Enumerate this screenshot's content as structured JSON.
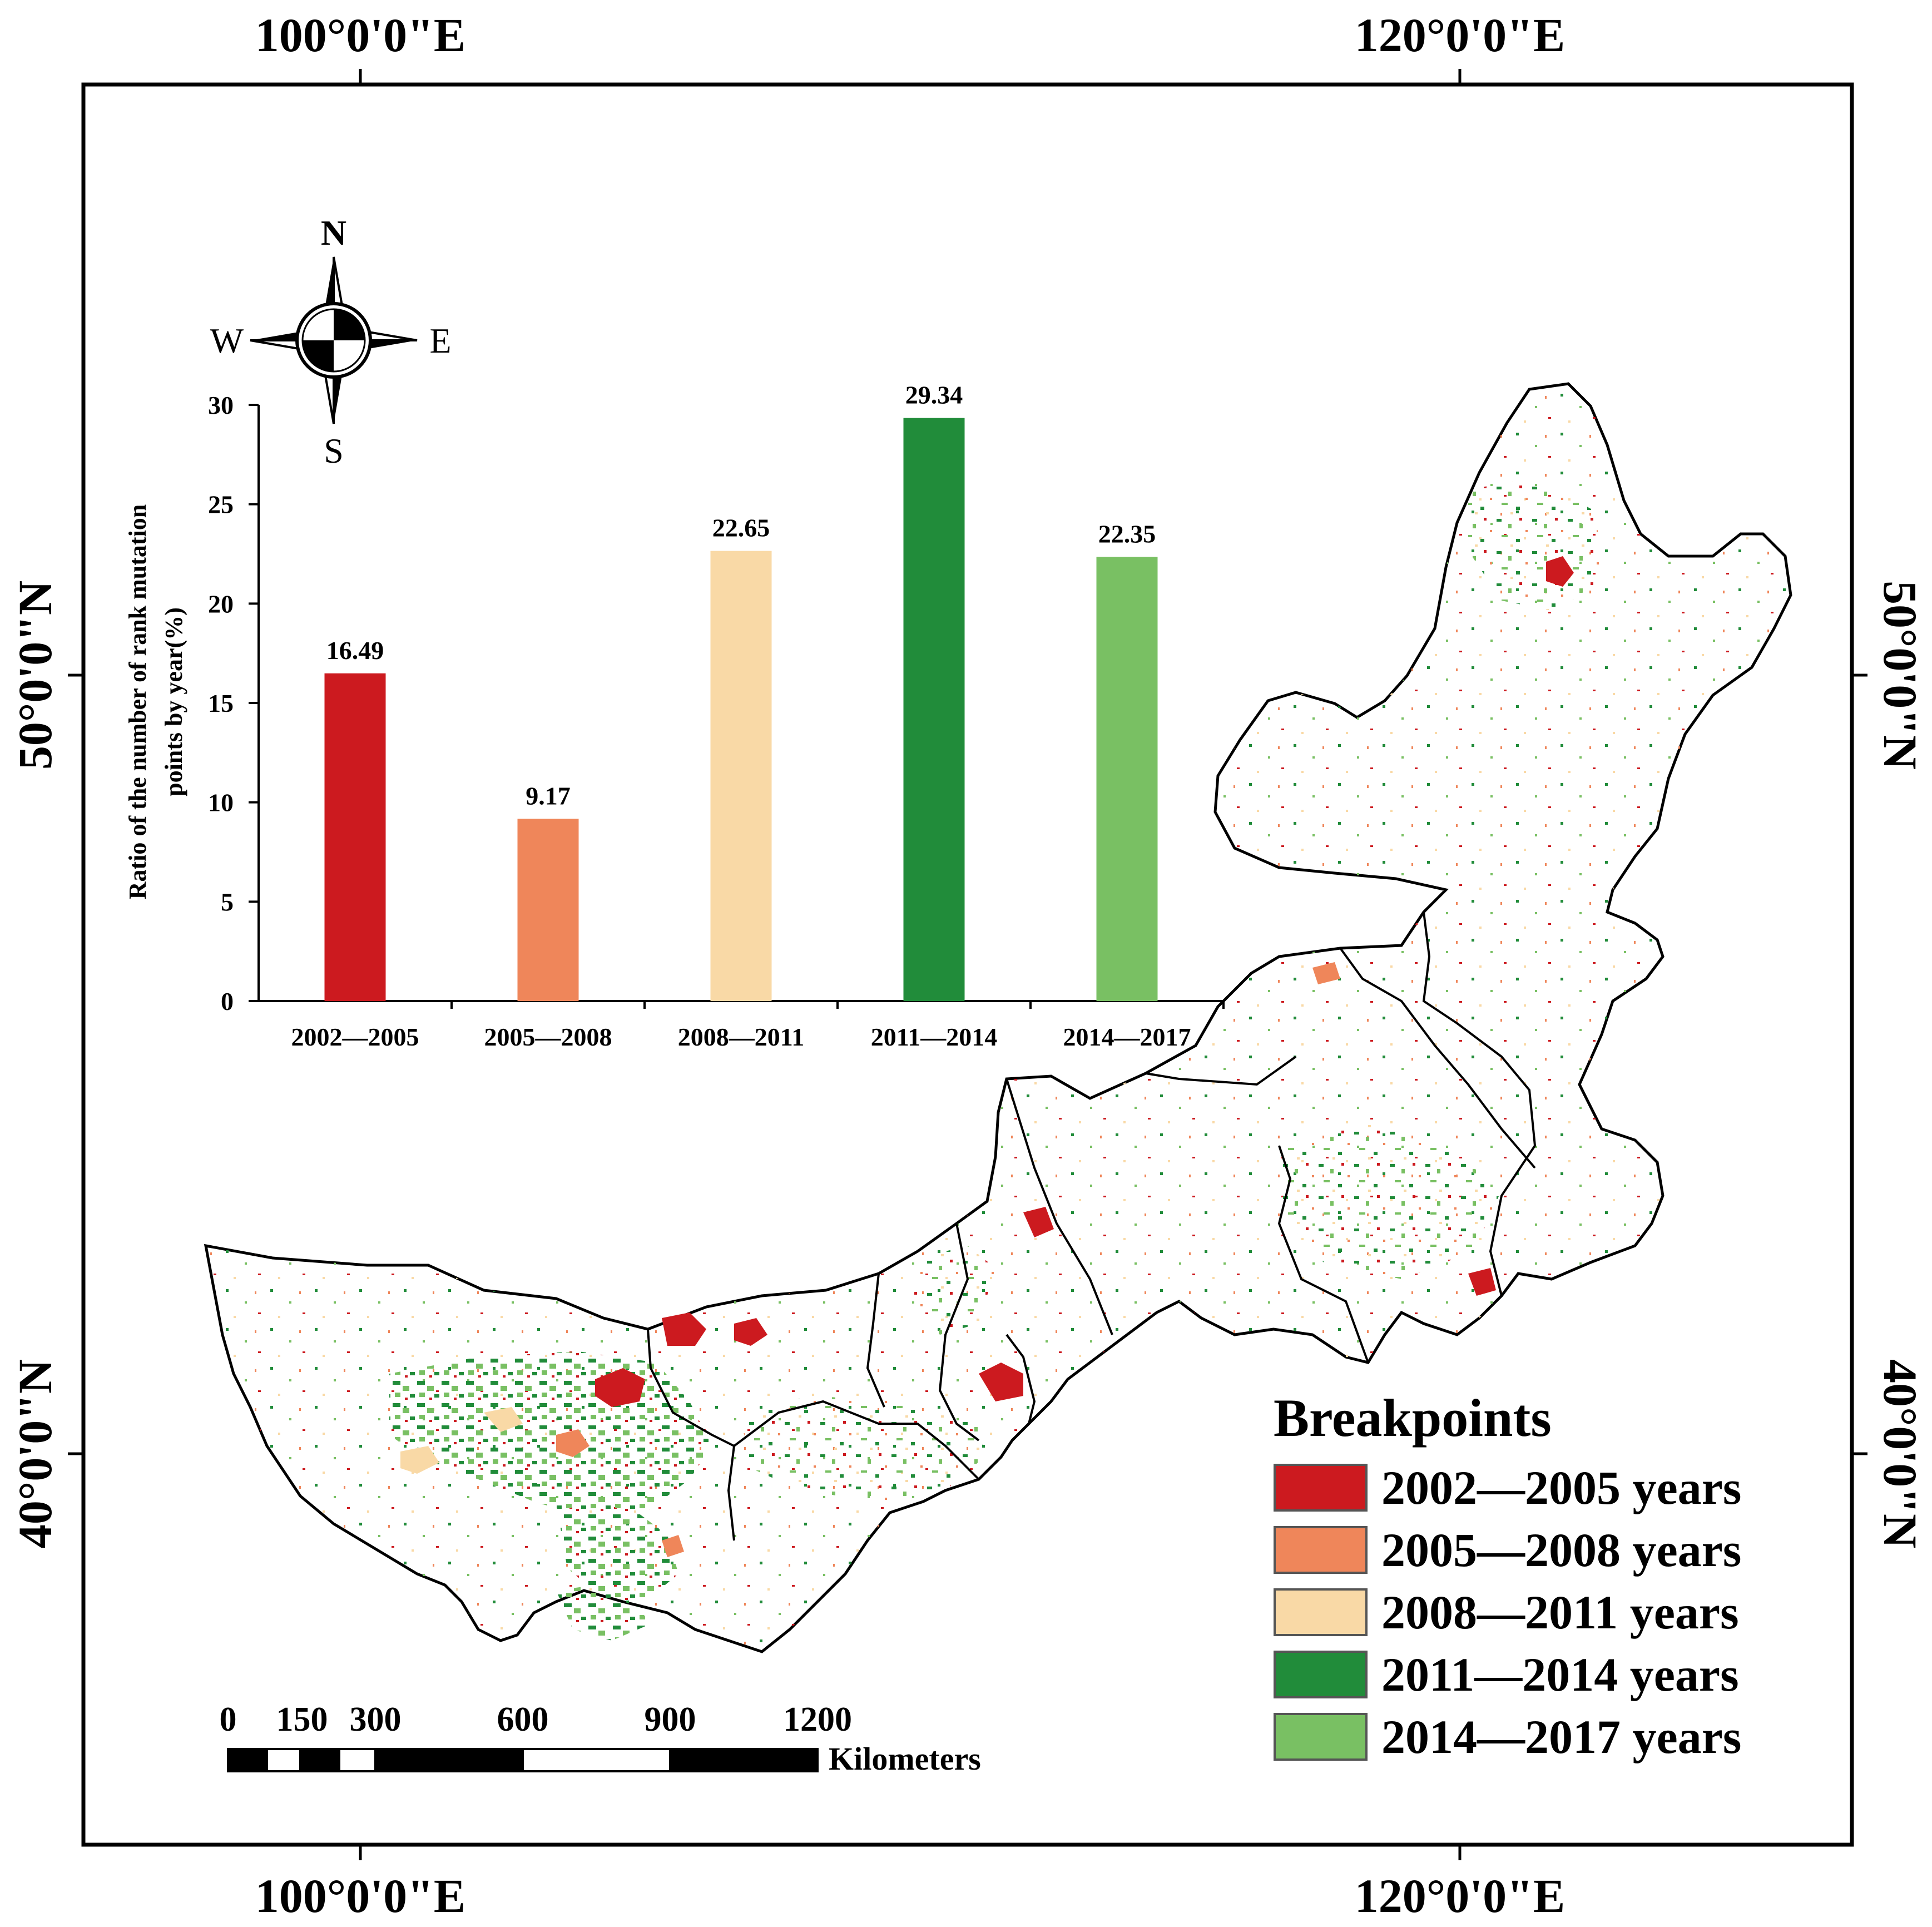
{
  "graticule": {
    "lon_top_left": "100°0'0\"E",
    "lon_top_right": "120°0'0\"E",
    "lon_bottom_left": "100°0'0\"E",
    "lon_bottom_right": "120°0'0\"E",
    "lat_upper_left": "50°0'0\"N",
    "lat_lower_left": "40°0'0\"N",
    "lat_upper_right": "50°0'0\"N",
    "lat_lower_right": "40°0'0\"N"
  },
  "compass": {
    "n": "N",
    "s": "S",
    "e": "E",
    "w": "W"
  },
  "legend": {
    "title": "Breakpoints",
    "items": [
      {
        "label": "2002—2005 years",
        "color": "#cc1a1f"
      },
      {
        "label": "2005—2008 years",
        "color": "#ef865a"
      },
      {
        "label": "2008—2011 years",
        "color": "#f9d9a6"
      },
      {
        "label": "2011—2014 years",
        "color": "#218c3a"
      },
      {
        "label": "2014—2017 years",
        "color": "#79c063"
      }
    ]
  },
  "scale_bar": {
    "ticks": [
      "0",
      "150",
      "300",
      "600",
      "900",
      "1200"
    ],
    "unit": "Kilometers"
  },
  "chart_data": {
    "type": "bar",
    "ylabel_line1": "Ratio of the number of rank mutation",
    "ylabel_line2": "points by year(%)",
    "categories": [
      "2002—2005",
      "2005—2008",
      "2008—2011",
      "2011—2014",
      "2014—2017"
    ],
    "values": [
      16.49,
      9.17,
      22.65,
      29.34,
      22.35
    ],
    "value_labels": [
      "16.49",
      "9.17",
      "22.65",
      "29.34",
      "22.35"
    ],
    "colors": [
      "#cc1a1f",
      "#ef865a",
      "#f9d9a6",
      "#218c3a",
      "#79c063"
    ],
    "ylim": [
      0,
      30
    ],
    "yticks": [
      0,
      5,
      10,
      15,
      20,
      25,
      30
    ],
    "grid": false,
    "legend": "none"
  }
}
